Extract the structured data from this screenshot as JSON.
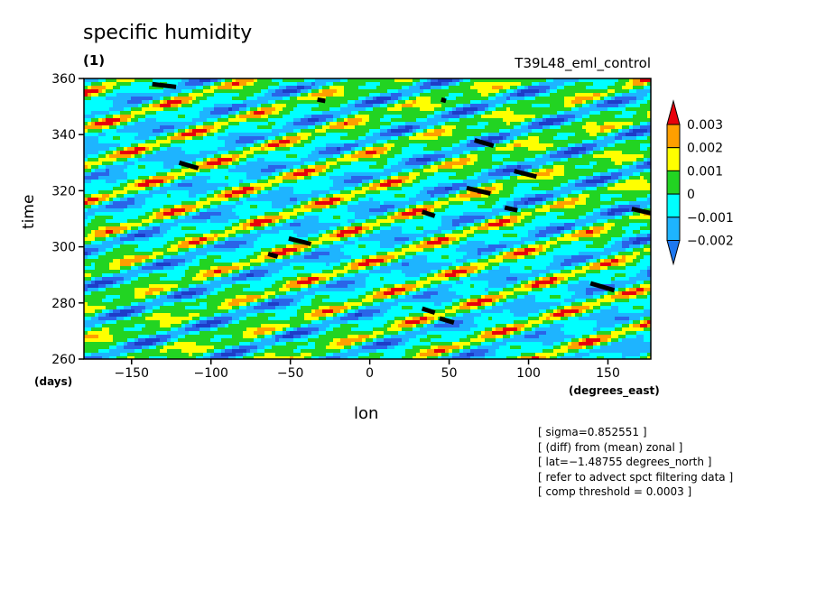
{
  "chart_data": {
    "type": "heatmap",
    "title": "specific humidity",
    "subtitle": "(1)",
    "run_label": "T39L48_eml_control",
    "xlabel": "lon",
    "ylabel": "time",
    "x_units": "(degrees_east)",
    "y_units": "(days)",
    "xlim": [
      -180,
      177
    ],
    "ylim": [
      260,
      360
    ],
    "xticks": [
      -150,
      -100,
      -50,
      0,
      50,
      100,
      150
    ],
    "yticks": [
      260,
      280,
      300,
      320,
      340,
      360
    ],
    "colorbar": {
      "levels": [
        "0.003",
        "0.002",
        "0.001",
        "0",
        "−0.001",
        "−0.002"
      ],
      "colors": [
        "#e8000b",
        "#ff9f00",
        "#ffff00",
        "#22d422",
        "#00ffff",
        "#1eb4ff",
        "#2a64e8",
        "#1e3cc8"
      ]
    },
    "threshold_markers": [
      {
        "lon": -137,
        "time": 358,
        "lon2": -122,
        "time2": 357
      },
      {
        "lon": -33,
        "time": 352.5,
        "lon2": -28,
        "time2": 352
      },
      {
        "lon": 45,
        "time": 352.5,
        "lon2": 48,
        "time2": 352
      },
      {
        "lon": 66,
        "time": 338,
        "lon2": 78,
        "time2": 336
      },
      {
        "lon": 91,
        "time": 327,
        "lon2": 105,
        "time2": 325
      },
      {
        "lon": -120,
        "time": 330,
        "lon2": -108,
        "time2": 328
      },
      {
        "lon": 61,
        "time": 321,
        "lon2": 76,
        "time2": 319
      },
      {
        "lon": 85,
        "time": 314,
        "lon2": 93,
        "time2": 313
      },
      {
        "lon": 33,
        "time": 312.5,
        "lon2": 41,
        "time2": 311
      },
      {
        "lon": 165,
        "time": 313.5,
        "lon2": 177,
        "time2": 312
      },
      {
        "lon": -51,
        "time": 303,
        "lon2": -37,
        "time2": 301
      },
      {
        "lon": -64,
        "time": 297.5,
        "lon2": -58,
        "time2": 296.5
      },
      {
        "lon": 139,
        "time": 287,
        "lon2": 154,
        "time2": 284.5
      },
      {
        "lon": 33,
        "time": 278,
        "lon2": 41,
        "time2": 276.5
      },
      {
        "lon": 44,
        "time": 274.5,
        "lon2": 53,
        "time2": 273
      }
    ]
  },
  "notes": [
    "[ sigma=0.852551 ]",
    "[ (diff) from (mean) zonal ]",
    "[ lat=−1.48755 degrees_north ]",
    "[ refer to advect spct filtering data ]",
    "[ comp threshold = 0.0003 ]"
  ]
}
